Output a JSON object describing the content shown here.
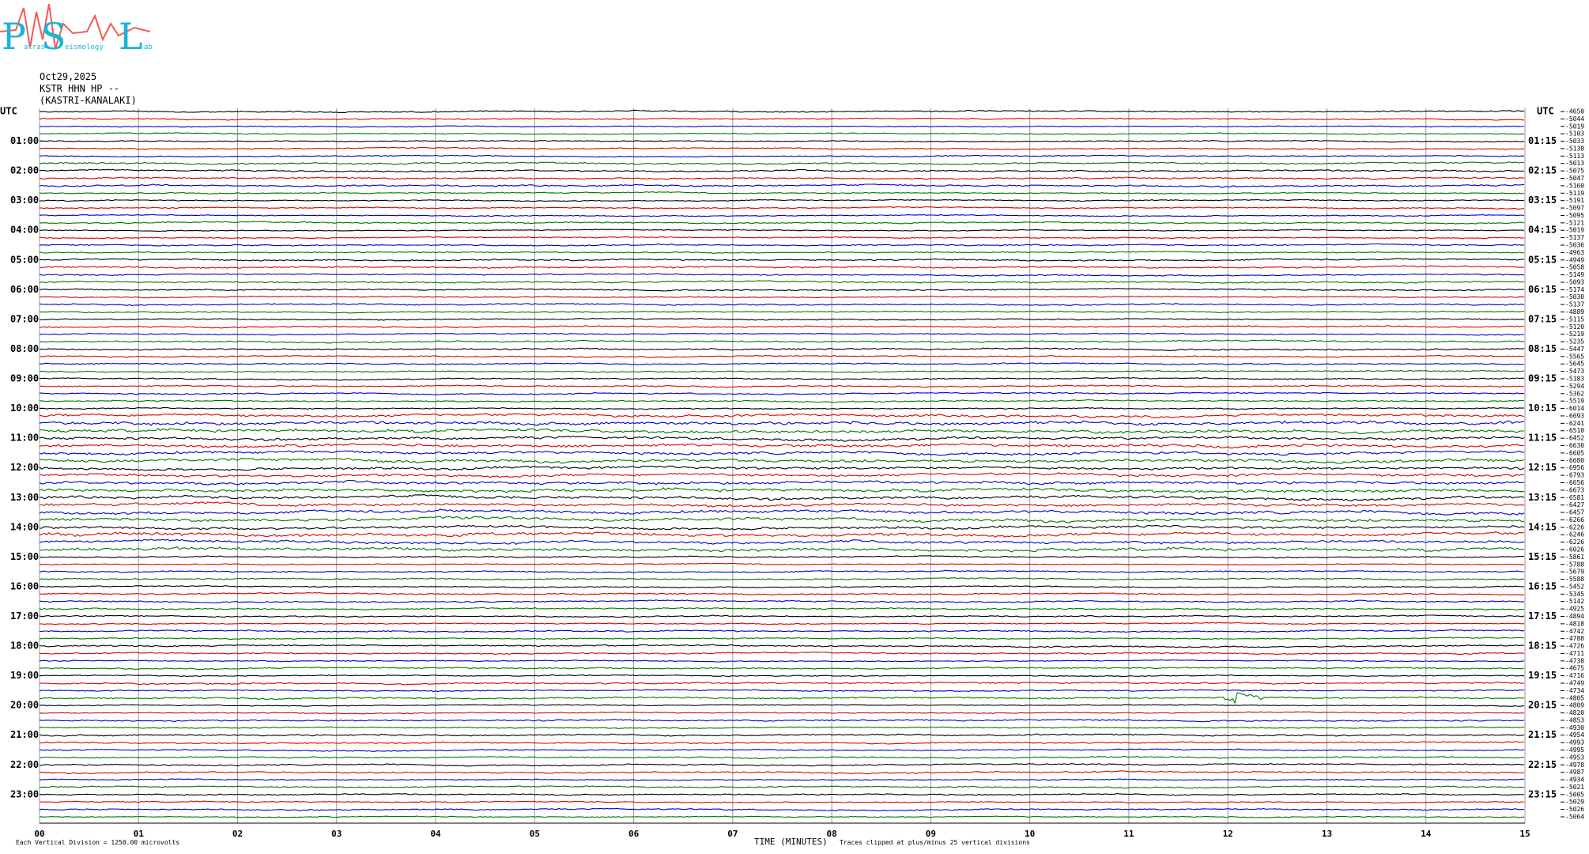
{
  "header": {
    "logo": {
      "letters": [
        "P",
        "S",
        "L"
      ],
      "words": [
        "atras",
        "eismology",
        "ab"
      ]
    },
    "date": "Oct29,2025",
    "station": "KSTR HHN HP --",
    "location": "(KASTRI-KANALAKI)"
  },
  "left_labels": [
    "UTC",
    "01:00",
    "02:00",
    "03:00",
    "04:00",
    "05:00",
    "06:00",
    "07:00",
    "08:00",
    "09:00",
    "10:00",
    "11:00",
    "12:00",
    "13:00",
    "14:00",
    "15:00",
    "16:00",
    "17:00",
    "18:00",
    "19:00",
    "20:00",
    "21:00",
    "22:00",
    "23:00"
  ],
  "right_labels": [
    "UTC",
    "01:15",
    "02:15",
    "03:15",
    "04:15",
    "05:15",
    "06:15",
    "07:15",
    "08:15",
    "09:15",
    "10:15",
    "11:15",
    "12:15",
    "13:15",
    "14:15",
    "15:15",
    "16:15",
    "17:15",
    "18:15",
    "19:15",
    "20:15",
    "21:15",
    "22:15",
    "23:15"
  ],
  "trace_offsets": [
    -4650,
    -5044,
    -5019,
    -5103,
    -5033,
    -5138,
    -5113,
    -5013,
    -5075,
    -5047,
    -5160,
    -5119,
    -5191,
    -5097,
    -5095,
    -5121,
    -5019,
    -5137,
    -5036,
    -4963,
    -4949,
    -5058,
    -5149,
    -5093,
    -5174,
    -5030,
    -5137,
    -4889,
    -5115,
    -5120,
    -5219,
    -5235,
    -5447,
    -5565,
    -5645,
    -5473,
    -5183,
    -5294,
    -5362,
    -5519,
    -6014,
    -6093,
    -6241,
    -6510,
    -6452,
    -6630,
    -6605,
    -6680,
    -6956,
    -6793,
    -6656,
    -6673,
    -6581,
    -6427,
    -6457,
    -6266,
    -6226,
    -6246,
    -6226,
    -6026,
    -5861,
    -5788,
    -5679,
    -5588,
    -5452,
    -5345,
    -5142,
    -4925,
    -4894,
    -4818,
    -4742,
    -4788,
    -4726,
    -4711,
    -4738,
    -4675,
    -4716,
    -4749,
    -4734,
    -4805,
    -4809,
    -4820,
    -4853,
    -4930,
    -4954,
    -4993,
    -4995,
    -4953,
    -4978,
    -4987,
    -4934,
    -5021,
    -5005,
    -5029,
    -5026,
    -5064
  ],
  "x_ticks": [
    "00",
    "01",
    "02",
    "03",
    "04",
    "05",
    "06",
    "07",
    "08",
    "09",
    "10",
    "11",
    "12",
    "13",
    "14",
    "15"
  ],
  "footer": {
    "scale": "Each Vertical Division = 1250.00 microvolts",
    "axis_title": "TIME (MINUTES)",
    "clip_note": "Traces clipped at plus/minus 25 vertical divisions"
  }
}
